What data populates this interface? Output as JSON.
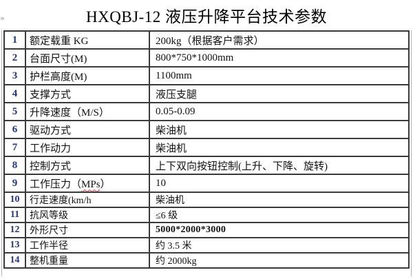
{
  "title": "HXQBJ-12 液压升降平台技术参数",
  "edge_artifact_glyph": "»",
  "colors": {
    "border": "#3a3a3a",
    "row_number": "#23357e",
    "text": "#111111",
    "spellcheck_wave": "#e03232",
    "side_line": "#b5b5b5",
    "background": "#ffffff"
  },
  "table": {
    "rows": [
      {
        "no": "1",
        "label": "额定载重 KG",
        "value": "200kg（根据客户需求）"
      },
      {
        "no": "2",
        "label": "台面尺寸(M)",
        "value": "800*750*1000mm"
      },
      {
        "no": "3",
        "label": "护栏高度(M)",
        "value": "1100mm"
      },
      {
        "no": "4",
        "label": "支撑方式",
        "value": "液压支腿"
      },
      {
        "no": "5",
        "label": "升降速度（M/S）",
        "value": "0.05-0.09"
      },
      {
        "no": "6",
        "label": "驱动方式",
        "value": "柴油机"
      },
      {
        "no": "7",
        "label": "工作动力",
        "value": "柴油机"
      },
      {
        "no": "8",
        "label": "控制方式",
        "value": "上下双向按钮控制(上升、下降、旋转)"
      },
      {
        "no": "9",
        "label": "工作压力（MPs）",
        "misspelled": "MPs",
        "value": "10"
      },
      {
        "no": "10",
        "label": "行走速度(km/h",
        "value": "柴油机",
        "compact": true
      },
      {
        "no": "11",
        "label": "抗风等级",
        "value": "≤6 级",
        "compact": true
      },
      {
        "no": "12",
        "label": "外形尺寸",
        "value": "5000*2000*3000",
        "compact": true,
        "small_value": true
      },
      {
        "no": "13",
        "label": "工作半径",
        "value": "约 3.5 米",
        "compact": true
      },
      {
        "no": "14",
        "label": "整机重量",
        "value": "约 2000kg",
        "compact": true
      }
    ]
  }
}
